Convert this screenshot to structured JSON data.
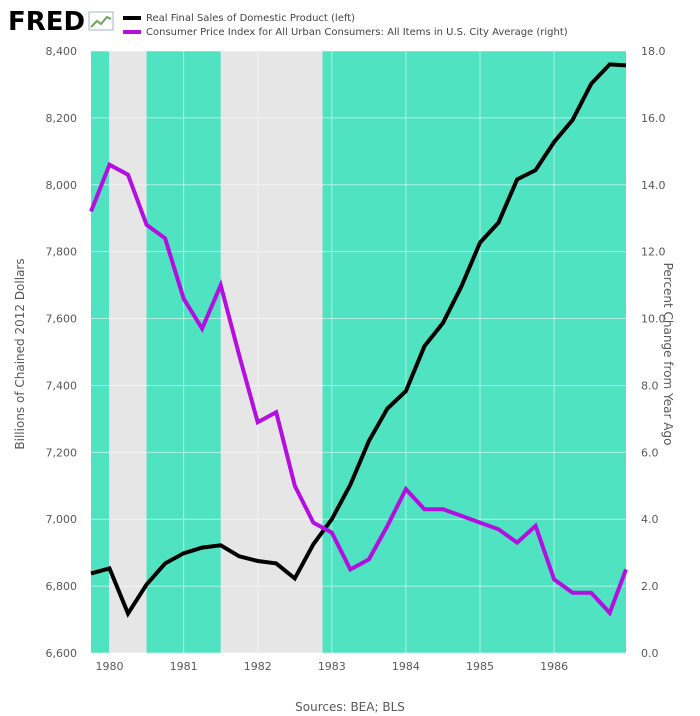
{
  "branding": {
    "logo_text": "FRED",
    "logo_color": "#1a3b65",
    "logo_icon": "chart-line-icon"
  },
  "legend": {
    "entries": [
      {
        "label": "Real Final Sales of Domestic Product (left)",
        "color": "#000000"
      },
      {
        "label": "Consumer Price Index for All Urban Consumers: All Items in U.S. City Average (right)",
        "color": "#b40ee0"
      }
    ]
  },
  "source": "Sources: BEA; BLS",
  "chart_data": {
    "type": "line",
    "background_color": "#4fe3c2",
    "recession_color": "#e6e6e6",
    "grid": true,
    "legend_placement": "top-left",
    "x_range": [
      1979.75,
      1986.97
    ],
    "x_ticks": [
      1980,
      1981,
      1982,
      1983,
      1984,
      1985,
      1986
    ],
    "recession_periods": [
      [
        1980.0,
        1980.5
      ],
      [
        1981.5,
        1982.875
      ]
    ],
    "y_left": {
      "label": "Billions of Chained 2012 Dollars",
      "range": [
        6600,
        8400
      ],
      "ticks": [
        "6,600",
        "6,800",
        "7,000",
        "7,200",
        "7,400",
        "7,600",
        "7,800",
        "8,000",
        "8,200",
        "8,400"
      ],
      "tick_values": [
        6600,
        6800,
        7000,
        7200,
        7400,
        7600,
        7800,
        8000,
        8200,
        8400
      ]
    },
    "y_right": {
      "label": "Percent Change from Year Ago",
      "range": [
        0,
        18
      ],
      "ticks": [
        "0.0",
        "2.0",
        "4.0",
        "6.0",
        "8.0",
        "10.0",
        "12.0",
        "14.0",
        "16.0",
        "18.0"
      ],
      "tick_values": [
        0,
        2,
        4,
        6,
        8,
        10,
        12,
        14,
        16,
        18
      ]
    },
    "series": [
      {
        "name": "Real Final Sales of Domestic Product (left)",
        "axis": "left",
        "color": "#000000",
        "x": [
          1979.75,
          1980.0,
          1980.25,
          1980.5,
          1980.75,
          1981.0,
          1981.25,
          1981.5,
          1981.75,
          1982.0,
          1982.25,
          1982.5,
          1982.75,
          1983.0,
          1983.25,
          1983.5,
          1983.75,
          1984.0,
          1984.25,
          1984.5,
          1984.75,
          1985.0,
          1985.25,
          1985.5,
          1985.75,
          1986.0,
          1986.25,
          1986.5,
          1986.75,
          1986.97
        ],
        "values": [
          6838,
          6853,
          6718,
          6805,
          6868,
          6898,
          6915,
          6922,
          6889,
          6875,
          6868,
          6823,
          6925,
          7000,
          7103,
          7234,
          7331,
          7383,
          7517,
          7587,
          7697,
          7827,
          7887,
          8016,
          8044,
          8128,
          8194,
          8302,
          8360,
          8357
        ]
      },
      {
        "name": "Consumer Price Index for All Urban Consumers: All Items in U.S. City Average (right)",
        "axis": "right",
        "color": "#b40ee0",
        "x": [
          1979.75,
          1980.0,
          1980.25,
          1980.5,
          1980.75,
          1981.0,
          1981.25,
          1981.5,
          1981.75,
          1982.0,
          1982.25,
          1982.5,
          1982.75,
          1983.0,
          1983.25,
          1983.5,
          1983.75,
          1984.0,
          1984.25,
          1984.5,
          1984.75,
          1985.0,
          1985.25,
          1985.5,
          1985.75,
          1986.0,
          1986.25,
          1986.5,
          1986.75,
          1986.97
        ],
        "values": [
          13.2,
          14.6,
          14.3,
          12.8,
          12.4,
          10.6,
          9.7,
          11.0,
          8.9,
          6.9,
          7.2,
          5.0,
          3.9,
          3.6,
          2.5,
          2.8,
          3.8,
          4.9,
          4.3,
          4.3,
          4.1,
          3.9,
          3.7,
          3.3,
          3.8,
          2.2,
          1.8,
          1.8,
          1.2,
          2.5
        ]
      }
    ]
  }
}
